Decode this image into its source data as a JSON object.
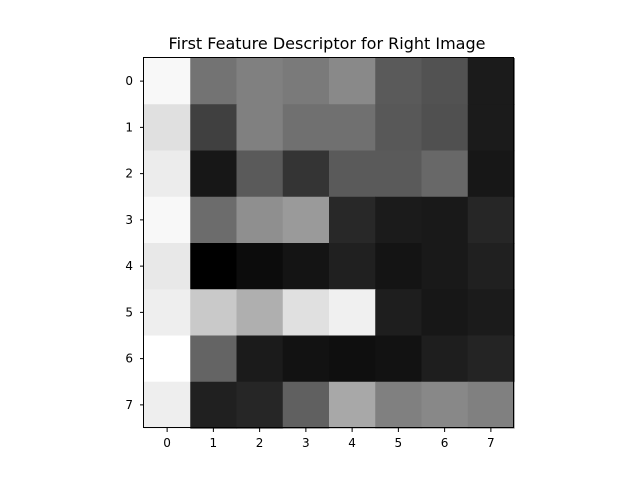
{
  "chart_data": {
    "type": "heatmap",
    "title": "First Feature Descriptor for Right Image",
    "xlabel": "",
    "ylabel": "",
    "colormap": "gray",
    "value_range": [
      0,
      255
    ],
    "x_ticks": [
      "0",
      "1",
      "2",
      "3",
      "4",
      "5",
      "6",
      "7"
    ],
    "y_ticks": [
      "0",
      "1",
      "2",
      "3",
      "4",
      "5",
      "6",
      "7"
    ],
    "grid": false,
    "values": [
      [
        248,
        115,
        128,
        122,
        137,
        90,
        82,
        27
      ],
      [
        224,
        64,
        128,
        112,
        112,
        88,
        80,
        27
      ],
      [
        236,
        23,
        90,
        52,
        90,
        90,
        104,
        23
      ],
      [
        248,
        108,
        143,
        154,
        40,
        27,
        25,
        38
      ],
      [
        232,
        0,
        12,
        20,
        32,
        20,
        25,
        32
      ],
      [
        238,
        201,
        175,
        224,
        240,
        30,
        23,
        27
      ],
      [
        255,
        100,
        27,
        18,
        15,
        18,
        30,
        36
      ],
      [
        238,
        32,
        38,
        96,
        168,
        128,
        136,
        128
      ]
    ]
  }
}
